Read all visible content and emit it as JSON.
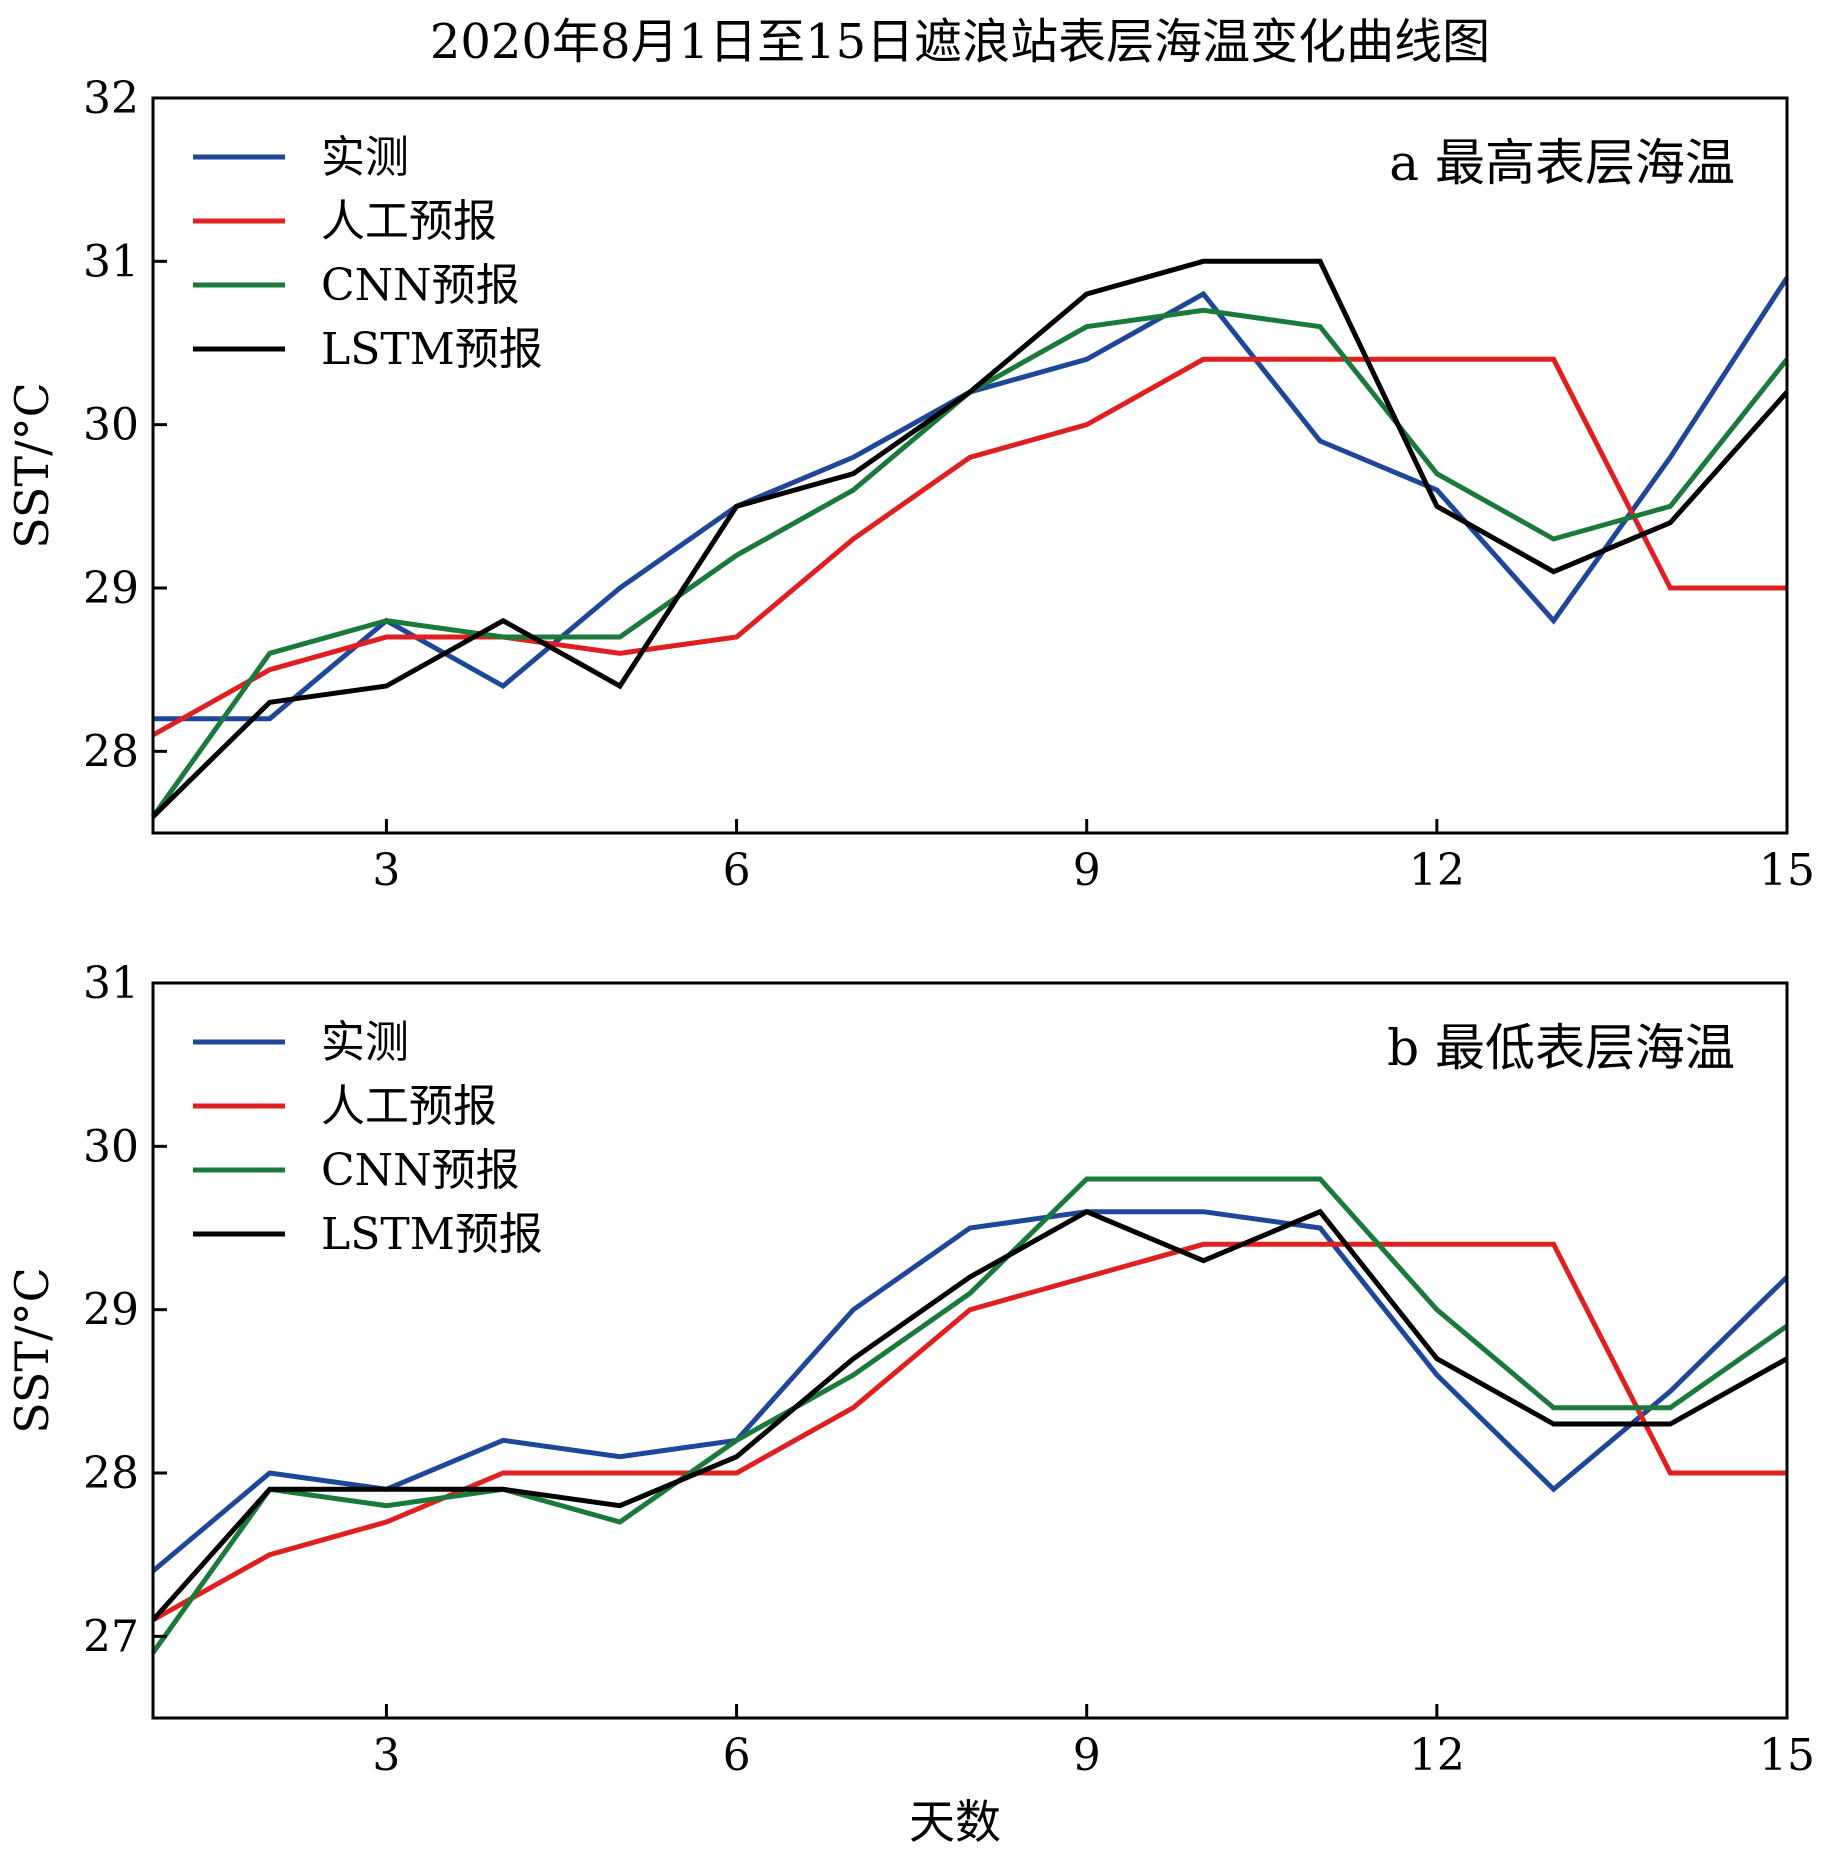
{
  "title": "2020年8月1日至15日遮浪站表层海温变化曲线图",
  "xlabel": "天数",
  "chart_data": [
    {
      "type": "line",
      "panel_label": "a  最高表层海温",
      "ylabel": "SST/°C",
      "x": [
        1,
        2,
        3,
        4,
        5,
        6,
        7,
        8,
        9,
        10,
        11,
        12,
        13,
        14,
        15
      ],
      "xlim": [
        1,
        15
      ],
      "ylim": [
        27.5,
        32
      ],
      "xticks": [
        3,
        6,
        9,
        12,
        15
      ],
      "yticks": [
        28,
        29,
        30,
        31,
        32
      ],
      "legend_position": "top-left",
      "grid": false,
      "series": [
        {
          "name": "实测",
          "color": "#1f4799",
          "values": [
            28.2,
            28.2,
            28.8,
            28.4,
            29.0,
            29.5,
            29.8,
            30.2,
            30.4,
            30.8,
            29.9,
            29.6,
            28.8,
            29.8,
            30.9
          ]
        },
        {
          "name": "人工预报",
          "color": "#e02020",
          "values": [
            28.1,
            28.5,
            28.7,
            28.7,
            28.6,
            28.7,
            29.3,
            29.8,
            30.0,
            30.4,
            30.4,
            30.4,
            30.4,
            29.0,
            29.0
          ]
        },
        {
          "name": "CNN预报",
          "color": "#1a7a3a",
          "values": [
            27.6,
            28.6,
            28.8,
            28.7,
            28.7,
            29.2,
            29.6,
            30.2,
            30.6,
            30.7,
            30.6,
            29.7,
            29.3,
            29.5,
            30.4
          ]
        },
        {
          "name": "LSTM预报",
          "color": "#000000",
          "values": [
            27.6,
            28.3,
            28.4,
            28.8,
            28.4,
            29.5,
            29.7,
            30.2,
            30.8,
            31.0,
            31.0,
            29.5,
            29.1,
            29.4,
            30.2
          ]
        }
      ]
    },
    {
      "type": "line",
      "panel_label": "b  最低表层海温",
      "ylabel": "SST/°C",
      "x": [
        1,
        2,
        3,
        4,
        5,
        6,
        7,
        8,
        9,
        10,
        11,
        12,
        13,
        14,
        15
      ],
      "xlim": [
        1,
        15
      ],
      "ylim": [
        26.5,
        31
      ],
      "xticks": [
        3,
        6,
        9,
        12,
        15
      ],
      "yticks": [
        27,
        28,
        29,
        30,
        31
      ],
      "legend_position": "top-left",
      "grid": false,
      "series": [
        {
          "name": "实测",
          "color": "#1f4799",
          "values": [
            27.4,
            28.0,
            27.9,
            28.2,
            28.1,
            28.2,
            29.0,
            29.5,
            29.6,
            29.6,
            29.5,
            28.6,
            27.9,
            28.5,
            29.2
          ]
        },
        {
          "name": "人工预报",
          "color": "#e02020",
          "values": [
            27.1,
            27.5,
            27.7,
            28.0,
            28.0,
            28.0,
            28.4,
            29.0,
            29.2,
            29.4,
            29.4,
            29.4,
            29.4,
            28.0,
            28.0
          ]
        },
        {
          "name": "CNN预报",
          "color": "#1a7a3a",
          "values": [
            26.9,
            27.9,
            27.8,
            27.9,
            27.7,
            28.2,
            28.6,
            29.1,
            29.8,
            29.8,
            29.8,
            29.0,
            28.4,
            28.4,
            28.9
          ]
        },
        {
          "name": "LSTM预报",
          "color": "#000000",
          "values": [
            27.1,
            27.9,
            27.9,
            27.9,
            27.8,
            28.1,
            28.7,
            29.2,
            29.6,
            29.3,
            29.6,
            28.7,
            28.3,
            28.3,
            28.7
          ]
        }
      ]
    }
  ]
}
